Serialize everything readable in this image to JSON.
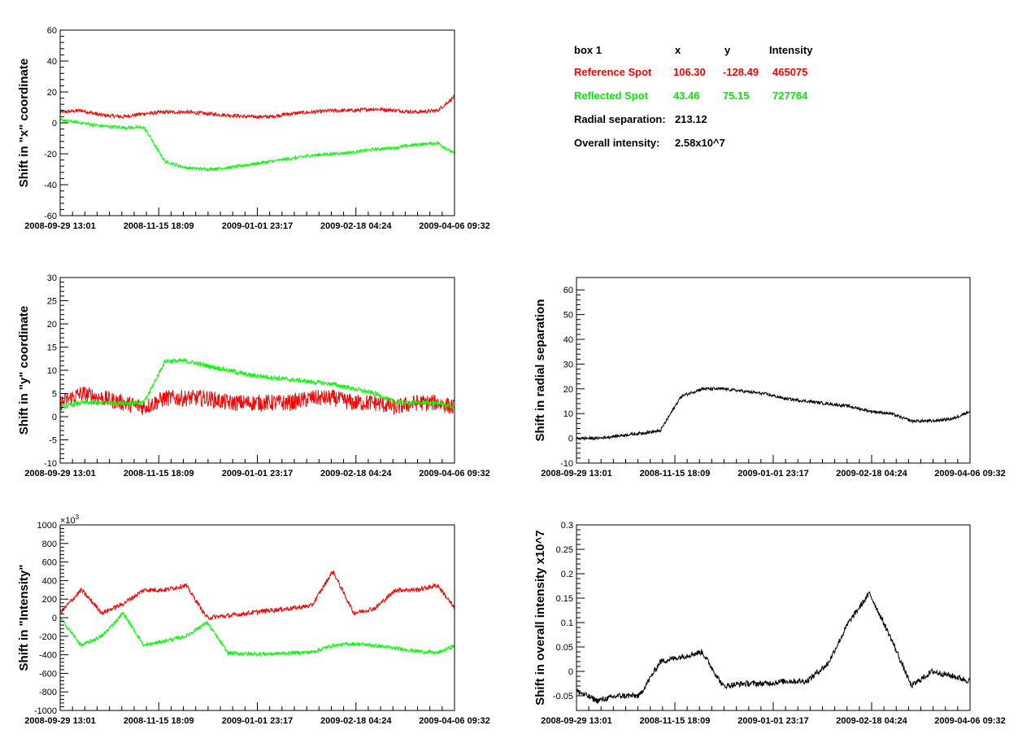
{
  "colors": {
    "reference": "#ff0000",
    "reflected": "#00ff00",
    "single": "#000000",
    "frame": "#000000"
  },
  "info_box": {
    "header": {
      "label": "box 1",
      "x": "x",
      "y": "y",
      "intensity": "Intensity"
    },
    "reference": {
      "label": "Reference Spot",
      "x": "106.30",
      "y": "-128.49",
      "intensity": "465075"
    },
    "reflected": {
      "label": "Reflected Spot",
      "x": "43.46",
      "y": "75.15",
      "intensity": "727764"
    },
    "radial": {
      "label": "Radial separation:",
      "value": "213.12"
    },
    "overall": {
      "label": "Overall intensity:",
      "value": "2.58x10^7"
    }
  },
  "chart_data": [
    {
      "id": "x",
      "type": "line",
      "ylabel": "Shift in \"x\" coordinate",
      "ylim": [
        -60,
        60
      ],
      "yticks": [
        "-60",
        "-40",
        "-20",
        "0",
        "20",
        "40",
        "60"
      ],
      "exponent": "",
      "x_ticks": [
        "2008-09-29 13:01",
        "2008-11-15 18:09",
        "2009-01-01 23:17",
        "2009-02-18 04:24",
        "2009-04-06 09:32"
      ],
      "x": [
        0,
        10,
        20,
        30,
        40,
        50,
        60,
        70,
        80,
        90,
        100,
        110,
        120,
        130,
        140,
        150,
        160,
        170,
        180,
        188
      ],
      "series": [
        {
          "color": "reference",
          "noise": 1.2,
          "values": [
            7,
            8,
            5,
            4,
            6,
            7,
            7,
            6,
            5,
            4,
            4,
            6,
            7,
            8,
            8,
            9,
            8,
            7,
            8,
            17
          ]
        },
        {
          "color": "reflected",
          "noise": 1.0,
          "values": [
            2,
            0,
            -2,
            -3,
            -3,
            -25,
            -29,
            -30,
            -29,
            -27,
            -25,
            -23,
            -21,
            -20,
            -19,
            -17,
            -16,
            -14,
            -13,
            -20
          ]
        }
      ]
    },
    {
      "id": "y",
      "type": "line",
      "ylabel": "Shift in \"y\" coordinate",
      "ylim": [
        -10,
        30
      ],
      "yticks": [
        "-10",
        "-5",
        "0",
        "5",
        "10",
        "15",
        "20",
        "25",
        "30"
      ],
      "exponent": "",
      "x_ticks": [
        "2008-09-29 13:01",
        "2008-11-15 18:09",
        "2009-01-01 23:17",
        "2009-02-18 04:24",
        "2009-04-06 09:32"
      ],
      "x": [
        0,
        10,
        20,
        30,
        40,
        50,
        60,
        70,
        80,
        90,
        100,
        110,
        120,
        130,
        140,
        150,
        160,
        170,
        180,
        188
      ],
      "series": [
        {
          "color": "reference",
          "noise": 1.8,
          "values": [
            3,
            5,
            4,
            3,
            2,
            4,
            4,
            4,
            3,
            3,
            3,
            3,
            4,
            4,
            3,
            3,
            2,
            3,
            3,
            2
          ]
        },
        {
          "color": "reflected",
          "noise": 0.5,
          "values": [
            2,
            3,
            3,
            3,
            3,
            12,
            12,
            11,
            10,
            9,
            8.5,
            8,
            7.5,
            7,
            6,
            5,
            3,
            3,
            3,
            2
          ]
        }
      ]
    },
    {
      "id": "intensity",
      "type": "line",
      "ylabel": "Shift in \"Intensity\"",
      "ylim": [
        -1000,
        1000
      ],
      "yticks": [
        "-1000",
        "-800",
        "-600",
        "-400",
        "-200",
        "0",
        "200",
        "400",
        "600",
        "800",
        "1000"
      ],
      "exponent": "×10",
      "exponent_power": "3",
      "x_ticks": [
        "2008-09-29 13:01",
        "2008-11-15 18:09",
        "2009-01-01 23:17",
        "2009-02-18 04:24",
        "2009-04-06 09:32"
      ],
      "x": [
        0,
        10,
        20,
        30,
        40,
        50,
        60,
        70,
        80,
        90,
        100,
        110,
        120,
        130,
        140,
        150,
        160,
        170,
        180,
        188
      ],
      "series": [
        {
          "color": "reference",
          "noise": 25,
          "values": [
            50,
            300,
            50,
            150,
            300,
            300,
            350,
            0,
            20,
            50,
            80,
            100,
            130,
            500,
            50,
            100,
            300,
            300,
            350,
            100
          ]
        },
        {
          "color": "reflected",
          "noise": 20,
          "values": [
            0,
            -300,
            -200,
            50,
            -300,
            -250,
            -200,
            -50,
            -380,
            -390,
            -390,
            -380,
            -370,
            -300,
            -280,
            -300,
            -330,
            -360,
            -380,
            -300
          ]
        }
      ]
    },
    {
      "id": "radial",
      "type": "line",
      "ylabel": "Shift in radial separation",
      "ylim": [
        -10,
        65
      ],
      "yticks": [
        "-10",
        "0",
        "10",
        "20",
        "30",
        "40",
        "50",
        "60"
      ],
      "exponent": "",
      "x_ticks": [
        "2008-09-29 13:01",
        "2008-11-15 18:09",
        "2009-01-01 23:17",
        "2009-02-18 04:24",
        "2009-04-06 09:32"
      ],
      "x": [
        0,
        10,
        20,
        30,
        40,
        50,
        60,
        70,
        80,
        90,
        100,
        110,
        120,
        130,
        140,
        150,
        160,
        170,
        180,
        188
      ],
      "series": [
        {
          "color": "single",
          "noise": 0.6,
          "values": [
            0,
            0,
            1,
            2,
            3,
            17,
            20,
            20,
            19,
            18,
            16,
            15,
            14,
            13,
            11,
            10,
            7,
            7,
            8,
            11
          ]
        }
      ]
    },
    {
      "id": "overall",
      "type": "line",
      "ylabel": "Shift in overall intensity x10^7",
      "ylim": [
        -0.08,
        0.3
      ],
      "yticks": [
        "-0.05",
        "0",
        "0.05",
        "0.1",
        "0.15",
        "0.2",
        "0.25",
        "0.3"
      ],
      "ytick_values": [
        -0.05,
        0,
        0.05,
        0.1,
        0.15,
        0.2,
        0.25,
        0.3
      ],
      "exponent": "",
      "x_ticks": [
        "2008-09-29 13:01",
        "2008-11-15 18:09",
        "2009-01-01 23:17",
        "2009-02-18 04:24",
        "2009-04-06 09:32"
      ],
      "x": [
        0,
        10,
        20,
        30,
        40,
        50,
        60,
        70,
        80,
        90,
        100,
        110,
        120,
        130,
        140,
        150,
        160,
        170,
        180,
        188
      ],
      "series": [
        {
          "color": "single",
          "noise": 0.006,
          "values": [
            -0.04,
            -0.06,
            -0.05,
            -0.05,
            0.02,
            0.03,
            0.04,
            -0.03,
            -0.025,
            -0.025,
            -0.02,
            -0.02,
            0.015,
            0.1,
            0.16,
            0.07,
            -0.03,
            0.0,
            -0.01,
            -0.02
          ]
        }
      ]
    }
  ]
}
